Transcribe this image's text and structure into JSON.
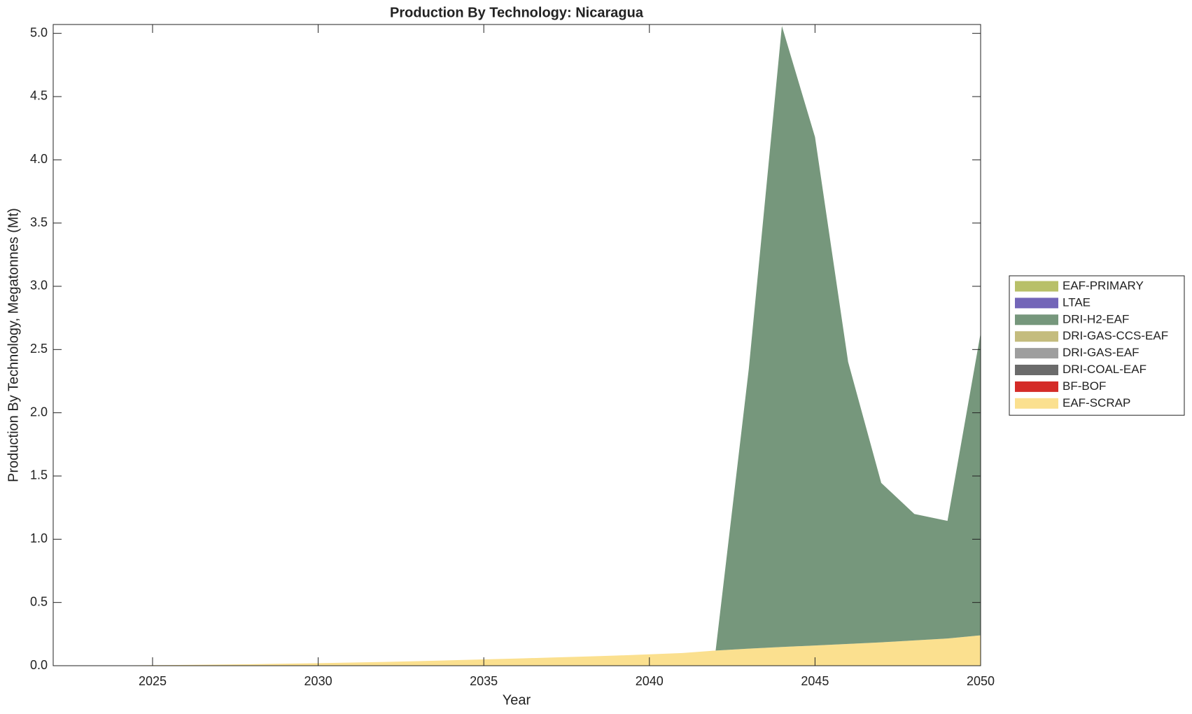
{
  "chart_data": {
    "type": "stacked_area",
    "title": "Production By Technology: Nicaragua",
    "xlabel": "Year",
    "ylabel": "Production By Technology, Megatonnes (Mt)",
    "x": [
      2022,
      2023,
      2024,
      2025,
      2026,
      2027,
      2028,
      2029,
      2030,
      2031,
      2032,
      2033,
      2034,
      2035,
      2036,
      2037,
      2038,
      2039,
      2040,
      2041,
      2042,
      2043,
      2044,
      2045,
      2046,
      2047,
      2048,
      2049,
      2050
    ],
    "series": [
      {
        "name": "EAF-PRIMARY",
        "color": "#b8c069",
        "values": [
          0,
          0,
          0,
          0,
          0,
          0,
          0,
          0,
          0,
          0,
          0,
          0,
          0,
          0,
          0,
          0,
          0,
          0,
          0,
          0,
          0,
          0,
          0,
          0,
          0,
          0,
          0,
          0,
          0
        ]
      },
      {
        "name": "LTAE",
        "color": "#7366b8",
        "values": [
          0,
          0,
          0,
          0,
          0,
          0,
          0,
          0,
          0,
          0,
          0,
          0,
          0,
          0,
          0,
          0,
          0,
          0,
          0,
          0,
          0,
          0,
          0,
          0,
          0,
          0,
          0,
          0,
          0
        ]
      },
      {
        "name": "DRI-H2-EAF",
        "color": "#76977c",
        "values": [
          0,
          0,
          0,
          0,
          0,
          0,
          0,
          0,
          0,
          0,
          0,
          0,
          0,
          0,
          0,
          0,
          0,
          0,
          0,
          0,
          0,
          2.21,
          4.91,
          4.02,
          2.23,
          1.26,
          1.0,
          0.93,
          2.39
        ]
      },
      {
        "name": "DRI-GAS-CCS-EAF",
        "color": "#c4bc7e",
        "values": [
          0,
          0,
          0,
          0,
          0,
          0,
          0,
          0,
          0,
          0,
          0,
          0,
          0,
          0,
          0,
          0,
          0,
          0,
          0,
          0,
          0,
          0,
          0,
          0,
          0,
          0,
          0,
          0,
          0
        ]
      },
      {
        "name": "DRI-GAS-EAF",
        "color": "#9e9e9e",
        "values": [
          0,
          0,
          0,
          0,
          0,
          0,
          0,
          0,
          0,
          0,
          0,
          0,
          0,
          0,
          0,
          0,
          0,
          0,
          0,
          0,
          0,
          0,
          0,
          0,
          0,
          0,
          0,
          0,
          0
        ]
      },
      {
        "name": "DRI-COAL-EAF",
        "color": "#6b6b6b",
        "values": [
          0,
          0,
          0,
          0,
          0,
          0,
          0,
          0,
          0,
          0,
          0,
          0,
          0,
          0,
          0,
          0,
          0,
          0,
          0,
          0,
          0,
          0,
          0,
          0,
          0,
          0,
          0,
          0,
          0
        ]
      },
      {
        "name": "BF-BOF",
        "color": "#d42b27",
        "values": [
          0,
          0,
          0,
          0,
          0,
          0,
          0,
          0,
          0,
          0,
          0,
          0,
          0,
          0,
          0,
          0,
          0,
          0,
          0,
          0,
          0,
          0,
          0,
          0,
          0,
          0,
          0,
          0,
          0
        ]
      },
      {
        "name": "EAF-SCRAP",
        "color": "#fbe08f",
        "values": [
          0,
          0,
          0.002,
          0.004,
          0.006,
          0.009,
          0.012,
          0.016,
          0.02,
          0.025,
          0.03,
          0.036,
          0.043,
          0.05,
          0.057,
          0.064,
          0.072,
          0.08,
          0.09,
          0.1,
          0.12,
          0.135,
          0.148,
          0.16,
          0.172,
          0.185,
          0.2,
          0.215,
          0.24
        ]
      }
    ],
    "xlim": [
      2022,
      2050
    ],
    "xticks": [
      2025,
      2030,
      2035,
      2040,
      2045,
      2050
    ],
    "ylim": [
      0,
      5.07
    ],
    "yticks": [
      {
        "value": 0,
        "label": "0.0"
      },
      0.5,
      {
        "value": 1,
        "label": "1.0"
      },
      1.5,
      {
        "value": 2,
        "label": "2.0"
      },
      2.5,
      {
        "value": 3,
        "label": "3.0"
      },
      3.5,
      {
        "value": 4,
        "label": "4.0"
      },
      4.5,
      {
        "value": 5,
        "label": "5.0"
      }
    ]
  }
}
